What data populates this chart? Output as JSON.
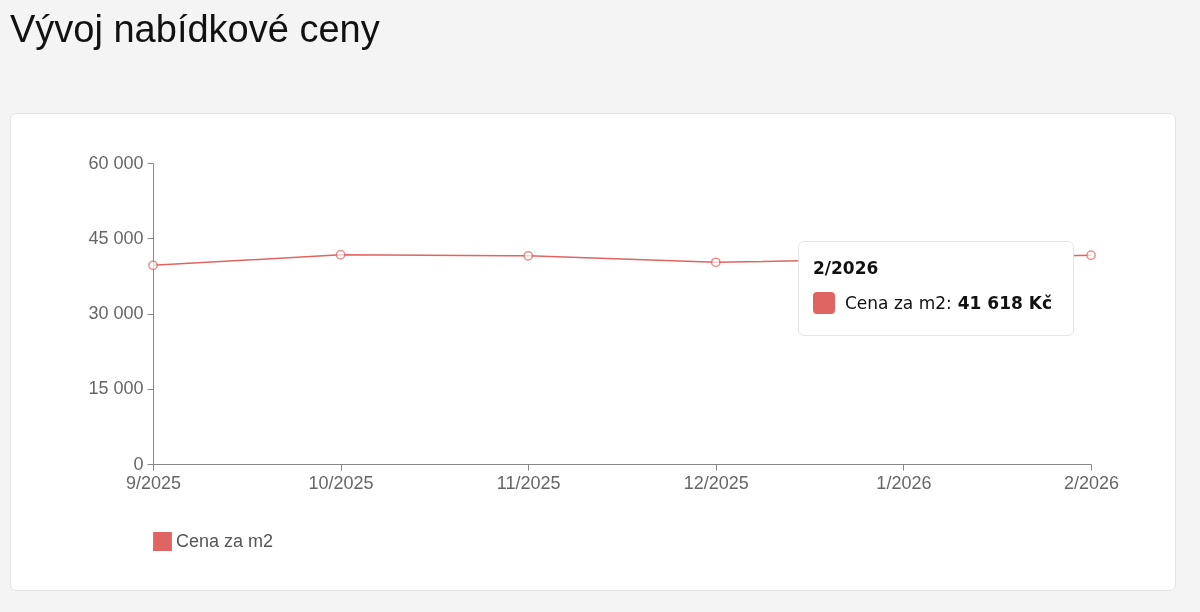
{
  "chart_data": {
    "type": "line",
    "title": "Vývoj nabídkové ceny",
    "categories": [
      "9/2025",
      "10/2025",
      "11/2025",
      "12/2025",
      "1/2026",
      "2/2026"
    ],
    "series": [
      {
        "name": "Cena za m2",
        "color": "#e06461",
        "values": [
          39600,
          41700,
          41500,
          40200,
          null,
          41618
        ]
      }
    ],
    "ylim": [
      0,
      60000
    ],
    "yticks": [
      {
        "value": 0,
        "label": "0"
      },
      {
        "value": 15000,
        "label": "15 000"
      },
      {
        "value": 30000,
        "label": "30 000"
      },
      {
        "value": 45000,
        "label": "45 000"
      },
      {
        "value": 60000,
        "label": "60 000"
      }
    ],
    "grid": false,
    "legend": "bottom",
    "marker": "circle",
    "line_style": "solid",
    "annotations": [
      "2/2026",
      "Cena za m2:",
      "41 618 Kč"
    ]
  }
}
